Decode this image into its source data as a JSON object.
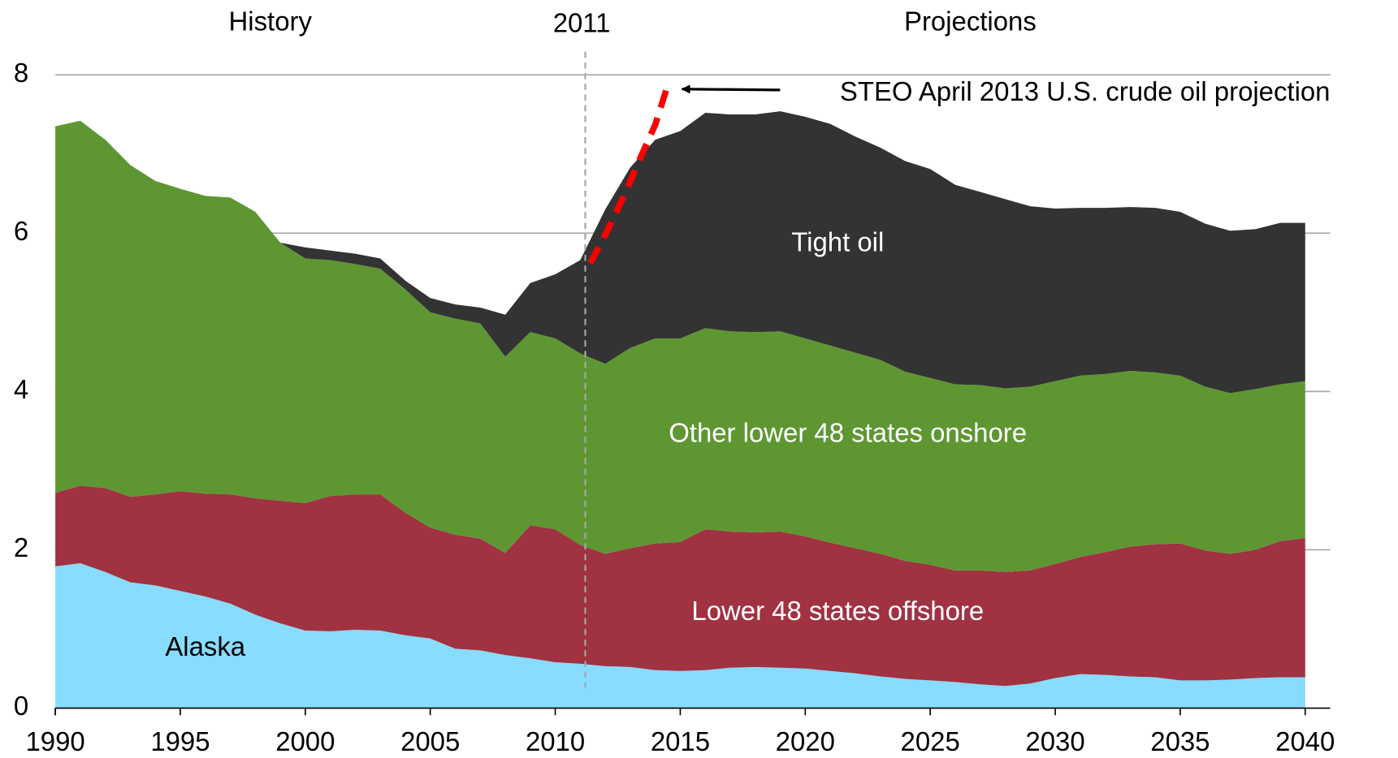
{
  "chart_data": {
    "type": "stacked_area",
    "x": [
      1990,
      1991,
      1992,
      1993,
      1994,
      1995,
      1996,
      1997,
      1998,
      1999,
      2000,
      2001,
      2002,
      2003,
      2004,
      2005,
      2006,
      2007,
      2008,
      2009,
      2010,
      2011,
      2012,
      2013,
      2014,
      2015,
      2016,
      2017,
      2018,
      2019,
      2020,
      2021,
      2022,
      2023,
      2024,
      2025,
      2026,
      2027,
      2028,
      2029,
      2030,
      2031,
      2032,
      2033,
      2034,
      2035,
      2036,
      2037,
      2038,
      2039,
      2040
    ],
    "series": [
      {
        "name": "Alaska",
        "color": "#87dcff",
        "label_color": "#000000",
        "label_at": [
          1996,
          0.75
        ],
        "values": [
          1.79,
          1.83,
          1.72,
          1.59,
          1.55,
          1.48,
          1.41,
          1.32,
          1.18,
          1.07,
          0.98,
          0.97,
          0.99,
          0.98,
          0.92,
          0.88,
          0.75,
          0.73,
          0.67,
          0.63,
          0.58,
          0.56,
          0.53,
          0.52,
          0.48,
          0.47,
          0.48,
          0.51,
          0.52,
          0.51,
          0.5,
          0.47,
          0.44,
          0.4,
          0.37,
          0.35,
          0.33,
          0.3,
          0.28,
          0.31,
          0.38,
          0.43,
          0.42,
          0.4,
          0.39,
          0.35,
          0.35,
          0.36,
          0.38,
          0.39,
          0.39
        ]
      },
      {
        "name": "Lower 48 states offshore",
        "color": "#a03242",
        "label_color": "#ffffff",
        "label_at": [
          2021.3,
          1.2
        ],
        "values": [
          0.93,
          0.98,
          1.06,
          1.08,
          1.15,
          1.26,
          1.3,
          1.38,
          1.47,
          1.55,
          1.61,
          1.71,
          1.71,
          1.72,
          1.55,
          1.4,
          1.44,
          1.41,
          1.29,
          1.68,
          1.68,
          1.5,
          1.42,
          1.5,
          1.6,
          1.63,
          1.78,
          1.72,
          1.7,
          1.72,
          1.67,
          1.62,
          1.58,
          1.55,
          1.49,
          1.46,
          1.41,
          1.44,
          1.44,
          1.43,
          1.44,
          1.48,
          1.55,
          1.64,
          1.68,
          1.73,
          1.64,
          1.59,
          1.62,
          1.72,
          1.76
        ]
      },
      {
        "name": "Other lower 48 states onshore",
        "color": "#5e9732",
        "label_color": "#ffffff",
        "label_at": [
          2021.7,
          3.45
        ],
        "values": [
          4.63,
          4.61,
          4.4,
          4.19,
          3.96,
          3.82,
          3.76,
          3.75,
          3.62,
          3.26,
          3.09,
          2.98,
          2.91,
          2.85,
          2.82,
          2.72,
          2.73,
          2.72,
          2.48,
          2.44,
          2.41,
          2.42,
          2.4,
          2.53,
          2.59,
          2.57,
          2.54,
          2.53,
          2.53,
          2.53,
          2.5,
          2.49,
          2.47,
          2.45,
          2.39,
          2.36,
          2.35,
          2.34,
          2.32,
          2.32,
          2.31,
          2.29,
          2.25,
          2.22,
          2.17,
          2.12,
          2.07,
          2.03,
          2.03,
          1.98,
          1.98
        ]
      },
      {
        "name": "Tight oil",
        "color": "#333333",
        "label_color": "#ffffff",
        "label_at": [
          2021.3,
          5.86
        ],
        "values": [
          0,
          0,
          0,
          0,
          0,
          0,
          0,
          0,
          0,
          0,
          0.14,
          0.12,
          0.13,
          0.13,
          0.11,
          0.18,
          0.18,
          0.2,
          0.53,
          0.62,
          0.81,
          1.18,
          1.95,
          2.28,
          2.51,
          2.62,
          2.72,
          2.74,
          2.75,
          2.78,
          2.8,
          2.8,
          2.73,
          2.68,
          2.66,
          2.64,
          2.52,
          2.44,
          2.39,
          2.28,
          2.18,
          2.12,
          2.1,
          2.07,
          2.08,
          2.07,
          2.06,
          2.05,
          2.02,
          2.04,
          2.0
        ]
      }
    ],
    "projection": {
      "label": "STEO April 2013 U.S. crude oil projection",
      "color": "#ff0000",
      "x": [
        2011.4,
        2012,
        2012.75,
        2013.4,
        2014,
        2014.54
      ],
      "values": [
        5.62,
        5.98,
        6.47,
        6.95,
        7.37,
        7.91
      ]
    },
    "annotations": [
      {
        "text": "History",
        "at": [
          1998.6,
          8.65
        ]
      },
      {
        "text": "Projections",
        "at": [
          2026.6,
          8.65
        ]
      }
    ],
    "divider": {
      "label": "2011",
      "x": 2011.2
    },
    "xlim": [
      1990,
      2041
    ],
    "xticks": [
      1990,
      1995,
      2000,
      2005,
      2010,
      2015,
      2020,
      2025,
      2030,
      2035,
      2040
    ],
    "ylim": [
      0,
      8
    ],
    "yticks": [
      0,
      2,
      4,
      6,
      8
    ],
    "grid": true
  }
}
